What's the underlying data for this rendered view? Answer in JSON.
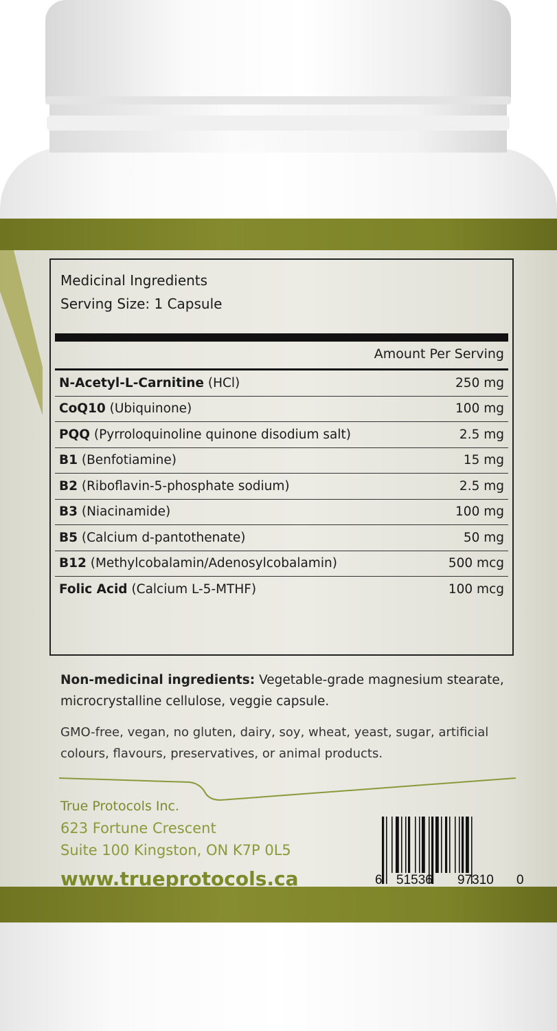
{
  "label": {
    "title": "Medicinal Ingredients",
    "serving_size": "Serving Size: 1 Capsule",
    "amount_header": "Amount Per Serving",
    "ingredients": [
      {
        "name": "N-Acetyl-L-Carnitine",
        "detail": " (HCl)",
        "amount": "250 mg"
      },
      {
        "name": "CoQ10",
        "detail": " (Ubiquinone)",
        "amount": "100 mg"
      },
      {
        "name": "PQQ",
        "detail": " (Pyrroloquinoline quinone disodium salt)",
        "amount": "2.5 mg"
      },
      {
        "name": "B1",
        "detail": " (Benfotiamine)",
        "amount": "15 mg"
      },
      {
        "name": "B2",
        "detail": " (Riboflavin-5-phosphate sodium)",
        "amount": "2.5 mg"
      },
      {
        "name": "B3",
        "detail": " (Niacinamide)",
        "amount": "100 mg"
      },
      {
        "name": "B5",
        "detail": " (Calcium d-pantothenate)",
        "amount": "50 mg"
      },
      {
        "name": "B12",
        "detail": " (Methylcobalamin/Adenosylcobalamin)",
        "amount": "500 mcg"
      },
      {
        "name": "Folic Acid",
        "detail": " (Calcium L-5-MTHF)",
        "amount": "100 mcg"
      }
    ],
    "non_medicinal_label": "Non-medicinal ingredients:",
    "non_medicinal_text": " Vegetable-grade magnesium stearate, microcrystalline cellulose, veggie capsule.",
    "free_from": "GMO-free, vegan, no gluten, dairy, soy, wheat, yeast, sugar, artificial colours, flavours, preservatives, or animal products.",
    "company": "True Protocols Inc.",
    "address_line1": "623 Fortune Crescent",
    "address_line2": "Suite 100 Kingston, ON K7P 0L5",
    "website": "www.trueprotocols.ca",
    "barcode_digits": [
      "6",
      "51536",
      "97310",
      "0"
    ]
  },
  "colors": {
    "olive": "#7c8a2a",
    "label_bg": "#e8e7df",
    "cap": "#ffffff"
  }
}
